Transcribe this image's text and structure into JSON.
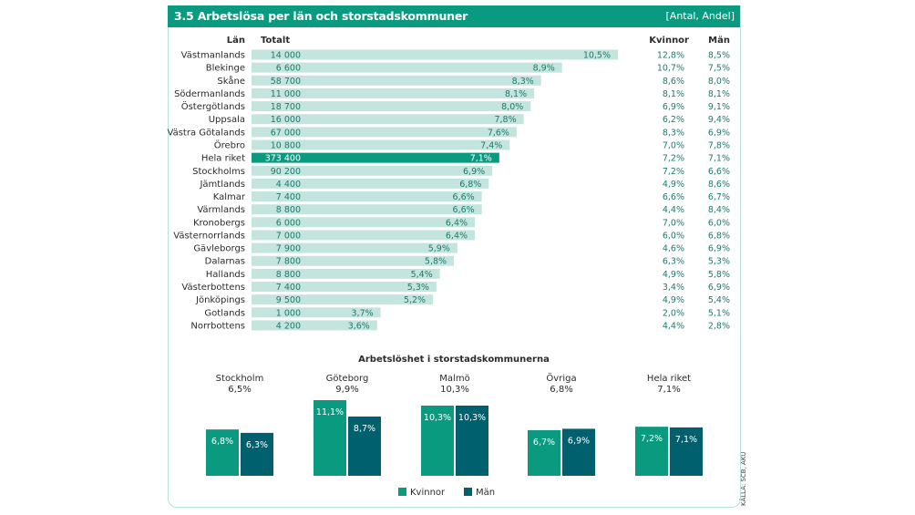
{
  "header": {
    "title": "3.5  Arbetslösa per län och storstadskommuner",
    "unit": "[Antal, Andel]"
  },
  "source": "KÄLLA: SCB, AKU",
  "colors": {
    "brand": "#0a9a80",
    "bar_light": "#c4e5dd",
    "bar_highlight": "#0a9a80",
    "kvinnor": "#0a9a80",
    "man": "#00606e",
    "text_value": "#1e7a6d"
  },
  "chart_data": [
    {
      "type": "bar",
      "orientation": "horizontal",
      "title": "Arbetslösa per län",
      "columns": {
        "lan": "Län",
        "totalt": "Totalt",
        "kvinnor": "Kvinnor",
        "man": "Män"
      },
      "xlim": [
        0,
        10.5
      ],
      "categories": [
        "Västmanlands",
        "Blekinge",
        "Skåne",
        "Södermanlands",
        "Östergötlands",
        "Uppsala",
        "Västra Götalands",
        "Örebro",
        "Hela riket",
        "Stockholms",
        "Jämtlands",
        "Kalmar",
        "Värmlands",
        "Kronobergs",
        "Västernorrlands",
        "Gävleborgs",
        "Dalarnas",
        "Hallands",
        "Västerbottens",
        "Jönköpings",
        "Gotlands",
        "Norrbottens"
      ],
      "totalt_antal": [
        "14 000",
        "6 600",
        "58 700",
        "11 000",
        "18 700",
        "16 000",
        "67 000",
        "10 800",
        "373 400",
        "90 200",
        "4 400",
        "7 400",
        "8 800",
        "6 000",
        "7 000",
        "7 900",
        "7 800",
        "8 800",
        "7 400",
        "9 500",
        "1 000",
        "4 200"
      ],
      "andel": [
        10.5,
        8.9,
        8.3,
        8.1,
        8.0,
        7.8,
        7.6,
        7.4,
        7.1,
        6.9,
        6.8,
        6.6,
        6.6,
        6.4,
        6.4,
        5.9,
        5.8,
        5.4,
        5.3,
        5.2,
        3.7,
        3.6
      ],
      "andel_labels": [
        "10,5%",
        "8,9%",
        "8,3%",
        "8,1%",
        "8,0%",
        "7,8%",
        "7,6%",
        "7,4%",
        "7,1%",
        "6,9%",
        "6,8%",
        "6,6%",
        "6,6%",
        "6,4%",
        "6,4%",
        "5,9%",
        "5,8%",
        "5,4%",
        "5,3%",
        "5,2%",
        "3,7%",
        "3,6%"
      ],
      "kvinnor": [
        "12,8%",
        "10,7%",
        "8,6%",
        "8,1%",
        "6,9%",
        "6,2%",
        "8,3%",
        "7,0%",
        "7,2%",
        "7,2%",
        "4,9%",
        "6,6%",
        "4,4%",
        "7,0%",
        "6,0%",
        "4,6%",
        "6,3%",
        "4,9%",
        "3,4%",
        "4,9%",
        "2,0%",
        "4,4%"
      ],
      "man": [
        "8,5%",
        "7,5%",
        "8,0%",
        "8,1%",
        "9,1%",
        "9,4%",
        "6,9%",
        "7,8%",
        "7,1%",
        "6,6%",
        "8,6%",
        "6,7%",
        "8,4%",
        "6,0%",
        "6,8%",
        "6,9%",
        "5,3%",
        "5,8%",
        "6,9%",
        "5,4%",
        "5,1%",
        "2,8%"
      ],
      "highlight": "Hela riket"
    },
    {
      "type": "bar",
      "orientation": "vertical",
      "title": "Arbetslöshet i storstadskommunerna",
      "ylim": [
        0,
        11.1
      ],
      "categories": [
        "Stockholm",
        "Göteborg",
        "Malmö",
        "Övriga",
        "Hela riket"
      ],
      "totals": [
        "6,5%",
        "9,9%",
        "10,3%",
        "6,8%",
        "7,1%"
      ],
      "series": [
        {
          "name": "Kvinnor",
          "values": [
            6.8,
            11.1,
            10.3,
            6.7,
            7.2
          ],
          "labels": [
            "6,8%",
            "11,1%",
            "10,3%",
            "6,7%",
            "7,2%"
          ]
        },
        {
          "name": "Män",
          "values": [
            6.3,
            8.7,
            10.3,
            6.9,
            7.1
          ],
          "labels": [
            "6,3%",
            "8,7%",
            "10,3%",
            "6,9%",
            "7,1%"
          ]
        }
      ],
      "legend": [
        "Kvinnor",
        "Män"
      ],
      "legend_position": "bottom"
    }
  ]
}
